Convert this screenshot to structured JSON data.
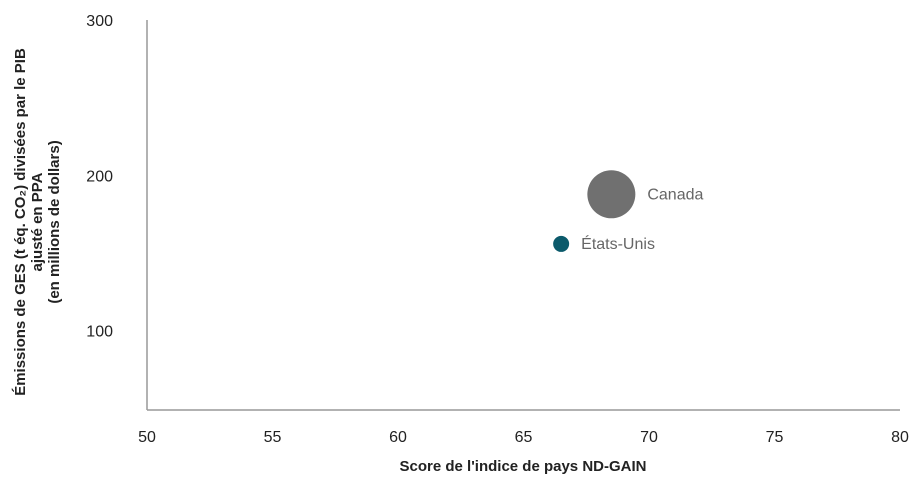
{
  "chart_data": {
    "type": "scatter",
    "xlabel": "Score de l'indice de pays ND-GAIN",
    "ylabel": [
      "Émissions de GES (t éq. CO₂) divisées par le PIB",
      "ajusté en PPA",
      "(en millions de dollars)"
    ],
    "xlim": [
      50,
      80
    ],
    "xticks": [
      50,
      55,
      60,
      65,
      70,
      75,
      80
    ],
    "ylim": [
      50,
      300
    ],
    "yticks": [
      100,
      200,
      300
    ],
    "series": [
      {
        "name": "Canada",
        "color": "#707070",
        "x": [
          68.5
        ],
        "values": [
          189
        ],
        "sizes": [
          9
        ]
      },
      {
        "name": "États-Unis",
        "color": "#0b5a6b",
        "x": [
          66.5
        ],
        "values": [
          157
        ],
        "sizes": [
          1
        ]
      }
    ]
  }
}
